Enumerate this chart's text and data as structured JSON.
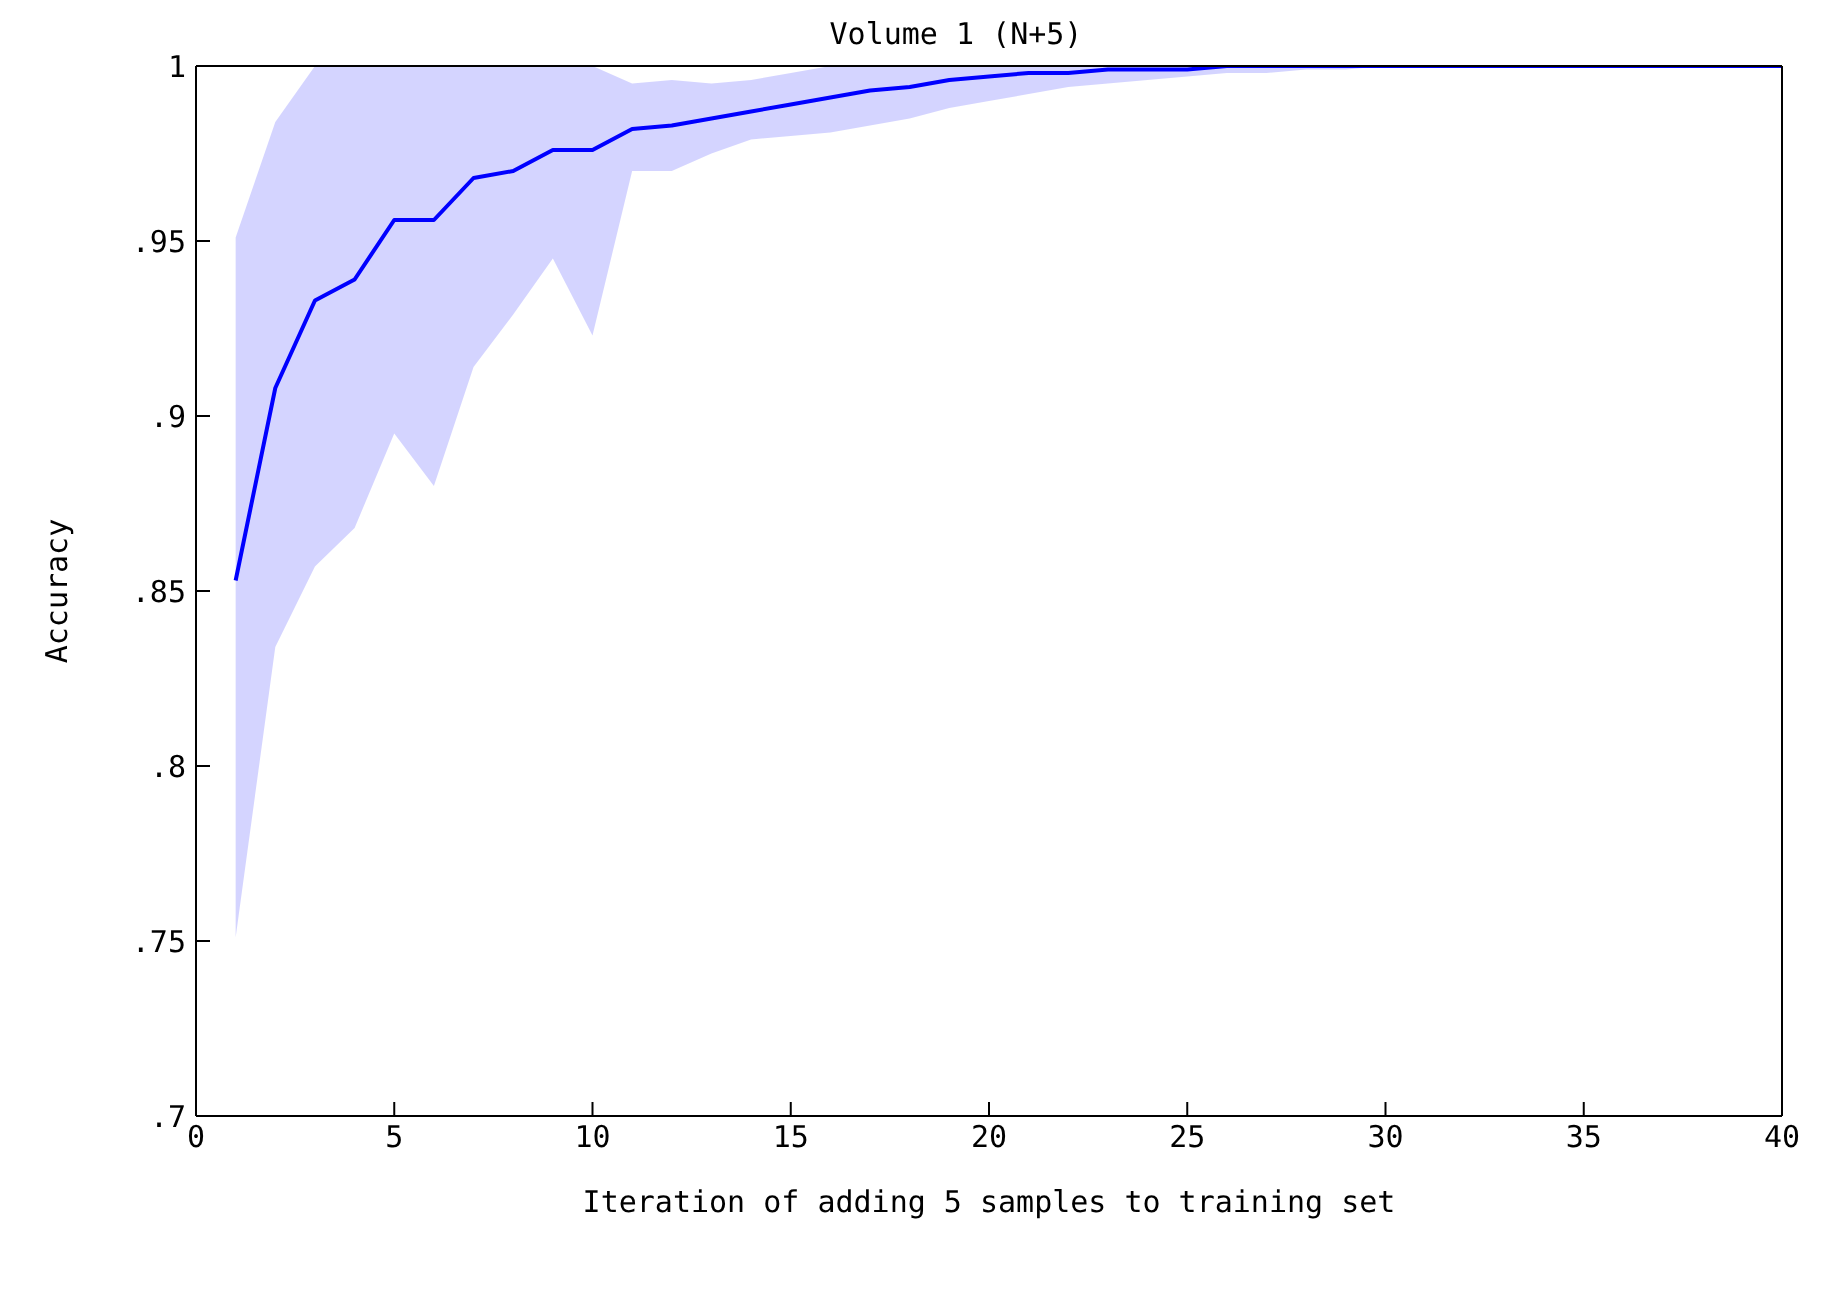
{
  "chart_data": {
    "type": "line",
    "title": "Volume 1 (N+5)",
    "xlabel": "Iteration of adding 5 samples to training set",
    "ylabel": "Accuracy",
    "x": [
      1,
      2,
      3,
      4,
      5,
      6,
      7,
      8,
      9,
      10,
      11,
      12,
      13,
      14,
      15,
      16,
      17,
      18,
      19,
      20,
      21,
      22,
      23,
      24,
      25,
      26,
      27,
      28,
      29,
      30,
      31,
      32,
      33,
      34,
      35,
      36,
      37,
      38,
      39,
      40
    ],
    "series": [
      {
        "color": "#0000ff",
        "values": [
          0.853,
          0.908,
          0.933,
          0.939,
          0.956,
          0.956,
          0.968,
          0.97,
          0.976,
          0.976,
          0.982,
          0.983,
          0.985,
          0.987,
          0.989,
          0.991,
          0.993,
          0.994,
          0.996,
          0.997,
          0.998,
          0.998,
          0.999,
          0.999,
          0.999,
          1,
          1,
          1,
          1,
          1,
          1,
          1,
          1,
          1,
          1,
          1,
          1,
          1,
          1,
          1
        ],
        "lower": [
          0.751,
          0.834,
          0.857,
          0.868,
          0.895,
          0.88,
          0.914,
          0.929,
          0.945,
          0.923,
          0.97,
          0.97,
          0.975,
          0.979,
          0.98,
          0.981,
          0.983,
          0.985,
          0.988,
          0.99,
          0.992,
          0.994,
          0.995,
          0.996,
          0.997,
          0.998,
          0.998,
          0.999,
          0.999,
          1,
          1,
          1,
          1,
          1,
          1,
          1,
          1,
          1,
          1,
          1
        ],
        "upper": [
          0.951,
          0.984,
          1,
          1,
          1,
          1,
          1,
          1,
          1,
          1,
          0.995,
          0.996,
          0.995,
          0.996,
          0.998,
          1,
          1,
          1,
          1,
          1,
          1,
          1,
          1,
          1,
          1,
          1,
          1,
          1,
          1,
          1,
          1,
          1,
          1,
          1,
          1,
          1,
          1,
          1,
          1,
          1
        ]
      }
    ],
    "xlim": [
      0,
      40
    ],
    "xticks": [
      0,
      5,
      10,
      15,
      20,
      25,
      30,
      35,
      40
    ],
    "ylim": [
      0.7,
      1
    ],
    "yticks": [
      {
        "value": 0.7,
        "label": ".7"
      },
      {
        "value": 0.75,
        "label": ".75"
      },
      {
        "value": 0.8,
        "label": ".8"
      },
      {
        "value": 0.85,
        "label": ".85"
      },
      {
        "value": 0.9,
        "label": ".9"
      },
      {
        "value": 0.95,
        "label": ".95"
      },
      {
        "value": 1,
        "label": "1"
      }
    ],
    "grid": false,
    "legend": false,
    "marker": "none",
    "line_style": "solid"
  }
}
